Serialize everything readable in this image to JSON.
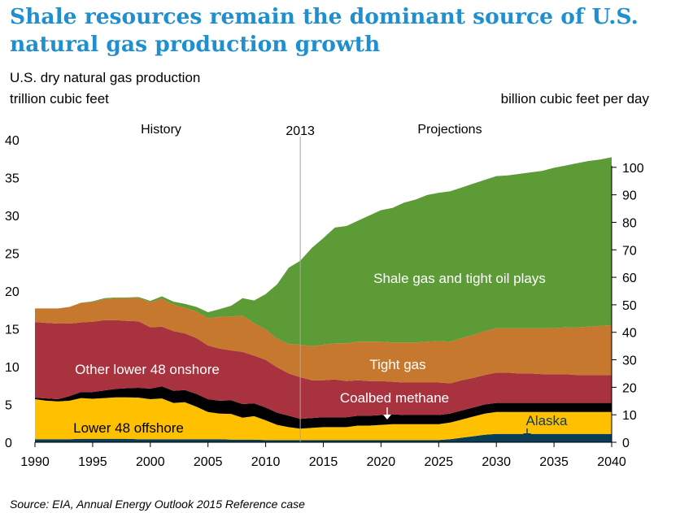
{
  "title": "Shale resources remain the dominant source of U.S. natural gas production growth",
  "subtitle": "U.S. dry natural gas production",
  "left_unit": "trillion cubic feet",
  "right_unit": "billion cubic feet per day",
  "source": "Source:  EIA, Annual Energy Outlook 2015 Reference case",
  "chart_data": {
    "type": "area",
    "stacked": true,
    "x": [
      1990,
      1991,
      1992,
      1993,
      1994,
      1995,
      1996,
      1997,
      1998,
      1999,
      2000,
      2001,
      2002,
      2003,
      2004,
      2005,
      2006,
      2007,
      2008,
      2009,
      2010,
      2011,
      2012,
      2013,
      2014,
      2015,
      2016,
      2017,
      2018,
      2019,
      2020,
      2021,
      2022,
      2023,
      2024,
      2025,
      2026,
      2027,
      2028,
      2029,
      2030,
      2031,
      2032,
      2033,
      2034,
      2035,
      2036,
      2037,
      2038,
      2039,
      2040
    ],
    "xlim": [
      1990,
      2040
    ],
    "xticks": [
      1990,
      1995,
      2000,
      2005,
      2010,
      2015,
      2020,
      2025,
      2030,
      2035,
      2040
    ],
    "ylim_left": [
      0,
      40
    ],
    "yticks_left": [
      0,
      5,
      10,
      15,
      20,
      25,
      30,
      35,
      40
    ],
    "ylim_right": [
      0,
      110
    ],
    "yticks_right": [
      0,
      10,
      20,
      30,
      40,
      50,
      60,
      70,
      80,
      90,
      100
    ],
    "divider": {
      "x": 2013,
      "label": "2013"
    },
    "period_labels": {
      "history": "History",
      "projections": "Projections"
    },
    "grid": false,
    "series": [
      {
        "name": "Alaska",
        "color": "#0a3d56",
        "values": [
          0.4,
          0.4,
          0.4,
          0.4,
          0.45,
          0.45,
          0.45,
          0.45,
          0.45,
          0.4,
          0.4,
          0.4,
          0.4,
          0.4,
          0.4,
          0.4,
          0.4,
          0.35,
          0.35,
          0.35,
          0.3,
          0.3,
          0.3,
          0.3,
          0.3,
          0.3,
          0.3,
          0.3,
          0.3,
          0.3,
          0.3,
          0.3,
          0.3,
          0.3,
          0.3,
          0.3,
          0.4,
          0.6,
          0.8,
          1.0,
          1.1,
          1.1,
          1.1,
          1.1,
          1.1,
          1.1,
          1.1,
          1.1,
          1.1,
          1.1,
          1.1
        ]
      },
      {
        "name": "Lower 48 offshore",
        "color": "#ffc000",
        "values": [
          5.3,
          5.1,
          5.0,
          5.1,
          5.4,
          5.3,
          5.4,
          5.5,
          5.5,
          5.5,
          5.3,
          5.4,
          4.8,
          4.9,
          4.3,
          3.6,
          3.4,
          3.4,
          2.9,
          3.1,
          2.6,
          2.0,
          1.7,
          1.5,
          1.6,
          1.7,
          1.7,
          1.7,
          1.9,
          1.9,
          2.0,
          2.1,
          2.1,
          2.1,
          2.1,
          2.1,
          2.2,
          2.4,
          2.6,
          2.8,
          2.9,
          2.9,
          2.9,
          2.9,
          2.9,
          2.9,
          2.9,
          2.9,
          2.9,
          2.9,
          2.9
        ]
      },
      {
        "name": "Coalbed methane",
        "color": "#000000",
        "values": [
          0.2,
          0.3,
          0.3,
          0.6,
          0.8,
          0.9,
          1.0,
          1.1,
          1.2,
          1.3,
          1.4,
          1.6,
          1.6,
          1.6,
          1.7,
          1.7,
          1.7,
          1.8,
          1.8,
          1.7,
          1.7,
          1.6,
          1.5,
          1.3,
          1.3,
          1.3,
          1.3,
          1.3,
          1.3,
          1.3,
          1.3,
          1.3,
          1.2,
          1.2,
          1.2,
          1.2,
          1.2,
          1.2,
          1.2,
          1.2,
          1.2,
          1.2,
          1.2,
          1.2,
          1.2,
          1.2,
          1.2,
          1.2,
          1.2,
          1.2,
          1.2
        ]
      },
      {
        "name": "Other lower 48 onshore",
        "color": "#a8323e",
        "values": [
          10.0,
          10.0,
          10.0,
          9.6,
          9.2,
          9.3,
          9.3,
          9.1,
          8.9,
          8.8,
          8.1,
          7.9,
          7.9,
          7.5,
          7.4,
          7.1,
          6.9,
          6.6,
          6.9,
          6.3,
          6.3,
          6.0,
          5.6,
          5.5,
          5.0,
          4.9,
          5.0,
          4.8,
          4.7,
          4.6,
          4.5,
          4.3,
          4.3,
          4.3,
          4.3,
          4.3,
          4.0,
          4.0,
          3.9,
          3.9,
          4.0,
          4.0,
          3.9,
          3.9,
          3.8,
          3.8,
          3.8,
          3.7,
          3.7,
          3.7,
          3.7
        ]
      },
      {
        "name": "Tight gas",
        "color": "#c6782f",
        "values": [
          1.8,
          1.9,
          2.0,
          2.2,
          2.6,
          2.6,
          2.8,
          2.9,
          3.0,
          3.1,
          3.3,
          3.7,
          3.5,
          3.4,
          3.5,
          3.6,
          4.2,
          4.5,
          4.8,
          4.3,
          4.0,
          3.8,
          3.9,
          4.3,
          4.5,
          4.7,
          4.8,
          5.0,
          5.1,
          5.2,
          5.2,
          5.2,
          5.3,
          5.3,
          5.4,
          5.5,
          5.5,
          5.6,
          5.7,
          5.8,
          5.9,
          5.9,
          6.0,
          6.0,
          6.1,
          6.1,
          6.2,
          6.3,
          6.4,
          6.5,
          6.6
        ]
      },
      {
        "name": "Shale gas and tight oil plays",
        "color": "#5c9b36",
        "values": [
          0.0,
          0.0,
          0.0,
          0.0,
          0.0,
          0.1,
          0.1,
          0.1,
          0.1,
          0.1,
          0.2,
          0.3,
          0.4,
          0.5,
          0.6,
          0.8,
          1.0,
          1.4,
          2.3,
          3.0,
          4.7,
          7.2,
          10.1,
          11.1,
          13.0,
          14.1,
          15.3,
          15.5,
          16.0,
          16.7,
          17.4,
          17.8,
          18.5,
          18.9,
          19.4,
          19.6,
          19.9,
          19.9,
          20.0,
          20.0,
          20.1,
          20.2,
          20.4,
          20.6,
          20.8,
          21.2,
          21.4,
          21.7,
          21.9,
          22.0,
          22.2
        ]
      }
    ],
    "annotations": [
      {
        "text": "Shale gas and tight oil plays",
        "color": "#ffffff"
      },
      {
        "text": "Tight gas",
        "color": "#ffffff"
      },
      {
        "text": "Other lower 48 onshore",
        "color": "#ffffff"
      },
      {
        "text": "Coalbed methane",
        "color": "#ffffff"
      },
      {
        "text": "Lower 48 offshore",
        "color": "#000000"
      },
      {
        "text": "Alaska",
        "color": "#0a3d56"
      }
    ]
  }
}
